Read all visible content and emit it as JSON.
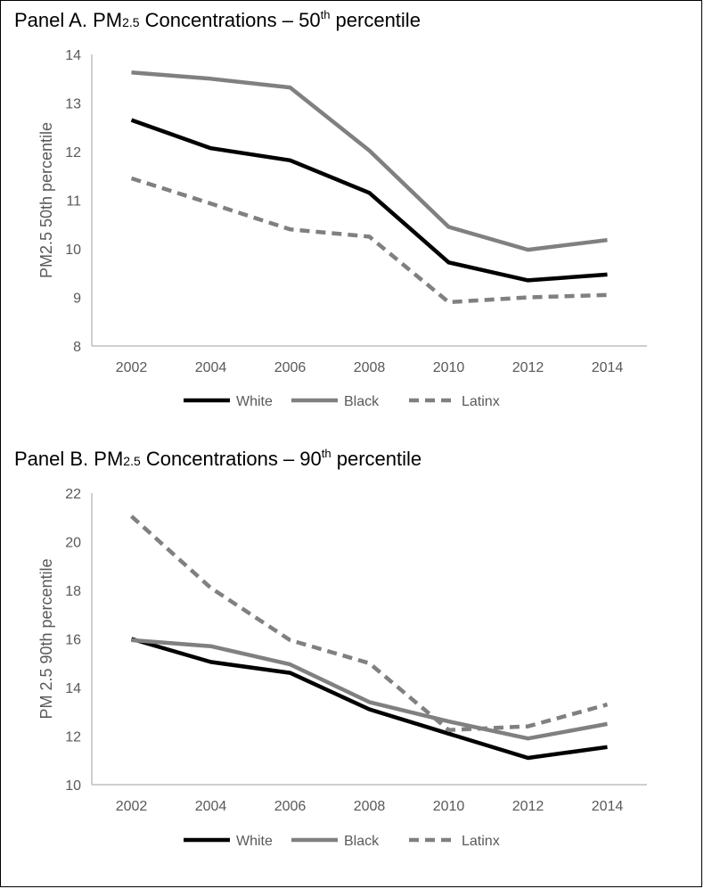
{
  "chart_data": [
    {
      "type": "line",
      "title": {
        "prefix": "Panel A. PM",
        "sub": "2.5",
        "middle": " Concentrations – 50",
        "sup": "th",
        "suffix": " percentile"
      },
      "ylabel": "PM2.5 50th percentile",
      "xlabel": "",
      "x": [
        "2002",
        "2004",
        "2006",
        "2008",
        "2010",
        "2012",
        "2014"
      ],
      "ylim": [
        8,
        14
      ],
      "yticks": [
        "8",
        "9",
        "10",
        "11",
        "12",
        "13",
        "14"
      ],
      "series": [
        {
          "name": "White",
          "color": "#000000",
          "dash": "solid",
          "values": [
            12.65,
            12.07,
            11.82,
            11.15,
            9.72,
            9.35,
            9.47
          ]
        },
        {
          "name": "Black",
          "color": "#808080",
          "dash": "solid",
          "values": [
            13.63,
            13.5,
            13.32,
            12.02,
            10.45,
            9.98,
            10.18
          ]
        },
        {
          "name": "Latinx",
          "color": "#808080",
          "dash": "dashed",
          "values": [
            11.45,
            10.93,
            10.4,
            10.25,
            8.9,
            9.0,
            9.05
          ]
        }
      ]
    },
    {
      "type": "line",
      "title": {
        "prefix": "Panel B. PM",
        "sub": "2.5",
        "middle": " Concentrations – 90",
        "sup": "th",
        "suffix": " percentile"
      },
      "ylabel": "PM 2.5 90th percentile",
      "xlabel": "",
      "x": [
        "2002",
        "2004",
        "2006",
        "2008",
        "2010",
        "2012",
        "2014"
      ],
      "ylim": [
        10,
        22
      ],
      "yticks": [
        "10",
        "12",
        "14",
        "16",
        "18",
        "20",
        "22"
      ],
      "series": [
        {
          "name": "White",
          "color": "#000000",
          "dash": "solid",
          "values": [
            16.0,
            15.05,
            14.6,
            13.1,
            12.1,
            11.1,
            11.55
          ]
        },
        {
          "name": "Black",
          "color": "#808080",
          "dash": "solid",
          "values": [
            15.95,
            15.7,
            14.95,
            13.4,
            12.6,
            11.9,
            12.5
          ]
        },
        {
          "name": "Latinx",
          "color": "#808080",
          "dash": "dashed",
          "values": [
            21.05,
            18.1,
            15.95,
            15.0,
            12.25,
            12.4,
            13.3
          ]
        }
      ]
    }
  ]
}
